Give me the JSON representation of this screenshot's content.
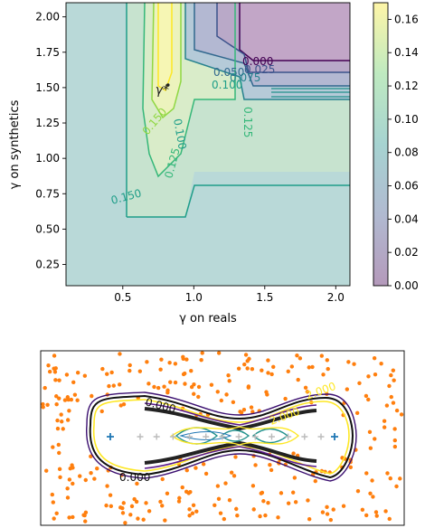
{
  "chart_data": [
    {
      "type": "heatmap",
      "subtype": "filled-contour",
      "xlabel": "γ on reals",
      "ylabel": "γ on synthetics",
      "xlim": [
        0.1,
        2.1
      ],
      "ylim": [
        0.1,
        2.1
      ],
      "xticks": [
        "0.5",
        "1.0",
        "1.5",
        "2.0"
      ],
      "yticks": [
        "0.25",
        "0.50",
        "0.75",
        "1.00",
        "1.25",
        "1.50",
        "1.75",
        "2.00"
      ],
      "colorbar": {
        "min": 0.0,
        "max": 0.17,
        "ticks": [
          "0.00",
          "0.02",
          "0.04",
          "0.06",
          "0.08",
          "0.10",
          "0.12",
          "0.14",
          "0.16"
        ],
        "colormap": "viridis",
        "alpha": 0.35
      },
      "contour_labels": [
        "0.000",
        "0.025",
        "0.050",
        "0.075",
        "0.100",
        "0.125",
        "0.150",
        "0.100",
        "0.125",
        "0.150",
        "0.100",
        "0.125"
      ],
      "annotation": {
        "text": "γ*",
        "x": 0.78,
        "y": 1.48
      },
      "grid": false,
      "colors": {
        "low": "#440154",
        "mid": "#21918c",
        "high": "#fde725"
      }
    },
    {
      "type": "scatter",
      "subtype": "decision-contours",
      "contour_labels": [
        "0.000",
        "2.000",
        "2.000",
        "0.000"
      ],
      "series_colors": {
        "orange_points": "#ff7f0e",
        "blue_plus": "#1f77b4",
        "grey_plus": "#bbbbbb"
      },
      "blue_markers": 2,
      "grey_markers": 12,
      "axes": "hidden"
    }
  ]
}
